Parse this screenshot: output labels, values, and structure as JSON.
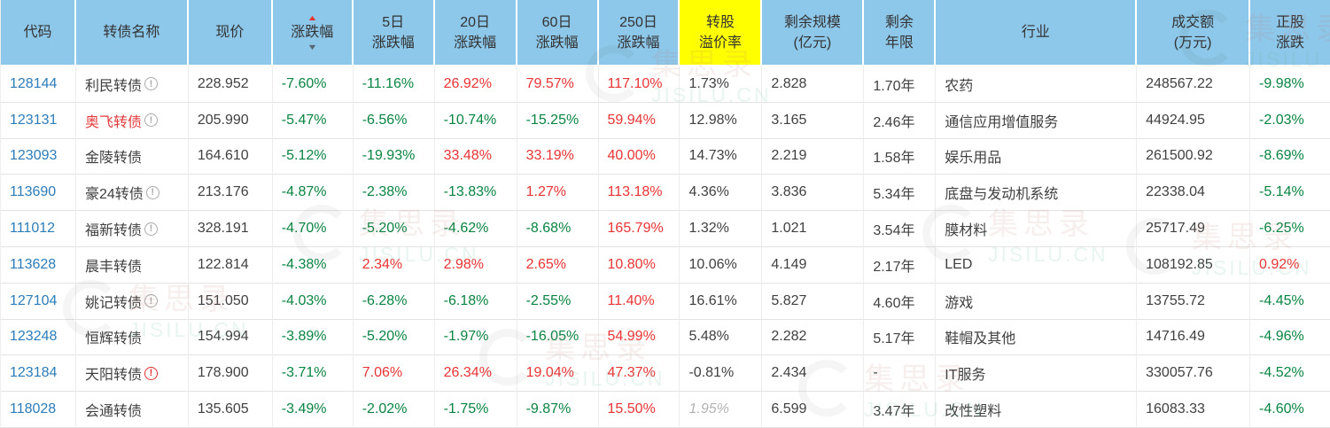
{
  "watermark": {
    "cn": "集思录",
    "en": "JISILU.CN"
  },
  "sort": {
    "column": "chg",
    "direction": "asc"
  },
  "colors": {
    "header_bg": "#8dc7e9",
    "highlight_bg": "#ffff00",
    "up_red": "#e83434",
    "down_green": "#0a8442",
    "code_blue": "#2b7cb9"
  },
  "table": {
    "columns": [
      {
        "key": "code",
        "label": [
          "代码"
        ]
      },
      {
        "key": "name",
        "label": [
          "转债名称"
        ]
      },
      {
        "key": "price",
        "label": [
          "现价"
        ]
      },
      {
        "key": "chg",
        "label": [
          "涨跌幅"
        ],
        "sort": true
      },
      {
        "key": "chg5",
        "label": [
          "5日",
          "涨跌幅"
        ]
      },
      {
        "key": "chg20",
        "label": [
          "20日",
          "涨跌幅"
        ]
      },
      {
        "key": "chg60",
        "label": [
          "60日",
          "涨跌幅"
        ]
      },
      {
        "key": "chg250",
        "label": [
          "250日",
          "涨跌幅"
        ]
      },
      {
        "key": "premium",
        "label": [
          "转股",
          "溢价率"
        ],
        "highlight": true
      },
      {
        "key": "size",
        "label": [
          "剩余规模",
          "(亿元)"
        ]
      },
      {
        "key": "years",
        "label": [
          "剩余",
          "年限"
        ]
      },
      {
        "key": "industry",
        "label": [
          "行业"
        ]
      },
      {
        "key": "turnover",
        "label": [
          "成交额",
          "(万元)"
        ]
      },
      {
        "key": "stock_chg",
        "label": [
          "正股",
          "涨跌"
        ]
      }
    ],
    "rows": [
      {
        "code": "128144",
        "name": "利民转债",
        "icon": "gray",
        "price": "228.952",
        "chg": {
          "v": "-7.60%",
          "c": "g"
        },
        "chg5": {
          "v": "-11.16%",
          "c": "g"
        },
        "chg20": {
          "v": "26.92%",
          "c": "r"
        },
        "chg60": {
          "v": "79.57%",
          "c": "r"
        },
        "chg250": {
          "v": "117.10%",
          "c": "r"
        },
        "premium": {
          "v": "1.73%",
          "c": "k"
        },
        "size": "2.828",
        "years": "1.70年",
        "industry": "农药",
        "turnover": "248567.22",
        "stock_chg": {
          "v": "-9.98%",
          "c": "g"
        }
      },
      {
        "code": "123131",
        "name": "奥飞转债",
        "name_red": true,
        "icon": "gray",
        "price": "205.990",
        "chg": {
          "v": "-5.47%",
          "c": "g"
        },
        "chg5": {
          "v": "-6.56%",
          "c": "g"
        },
        "chg20": {
          "v": "-10.74%",
          "c": "g"
        },
        "chg60": {
          "v": "-15.25%",
          "c": "g"
        },
        "chg250": {
          "v": "59.94%",
          "c": "r"
        },
        "premium": {
          "v": "12.98%",
          "c": "k"
        },
        "size": "3.165",
        "years": "2.46年",
        "industry": "通信应用增值服务",
        "turnover": "44924.95",
        "stock_chg": {
          "v": "-2.03%",
          "c": "g"
        }
      },
      {
        "code": "123093",
        "name": "金陵转债",
        "price": "164.610",
        "chg": {
          "v": "-5.12%",
          "c": "g"
        },
        "chg5": {
          "v": "-19.93%",
          "c": "g"
        },
        "chg20": {
          "v": "33.48%",
          "c": "r"
        },
        "chg60": {
          "v": "33.19%",
          "c": "r"
        },
        "chg250": {
          "v": "40.00%",
          "c": "r"
        },
        "premium": {
          "v": "14.73%",
          "c": "k"
        },
        "size": "2.219",
        "years": "1.58年",
        "industry": "娱乐用品",
        "turnover": "261500.92",
        "stock_chg": {
          "v": "-8.69%",
          "c": "g"
        }
      },
      {
        "code": "113690",
        "name": "豪24转债",
        "icon": "gray",
        "price": "213.176",
        "chg": {
          "v": "-4.87%",
          "c": "g"
        },
        "chg5": {
          "v": "-2.38%",
          "c": "g"
        },
        "chg20": {
          "v": "-13.83%",
          "c": "g"
        },
        "chg60": {
          "v": "1.27%",
          "c": "r"
        },
        "chg250": {
          "v": "113.18%",
          "c": "r"
        },
        "premium": {
          "v": "4.36%",
          "c": "k"
        },
        "size": "3.836",
        "years": "5.34年",
        "industry": "底盘与发动机系统",
        "turnover": "22338.04",
        "stock_chg": {
          "v": "-5.14%",
          "c": "g"
        }
      },
      {
        "code": "111012",
        "name": "福新转债",
        "icon": "gray",
        "price": "328.191",
        "chg": {
          "v": "-4.70%",
          "c": "g"
        },
        "chg5": {
          "v": "-5.20%",
          "c": "g"
        },
        "chg20": {
          "v": "-4.62%",
          "c": "g"
        },
        "chg60": {
          "v": "-8.68%",
          "c": "g"
        },
        "chg250": {
          "v": "165.79%",
          "c": "r"
        },
        "premium": {
          "v": "1.32%",
          "c": "k"
        },
        "size": "1.021",
        "years": "3.54年",
        "industry": "膜材料",
        "turnover": "25717.49",
        "stock_chg": {
          "v": "-6.25%",
          "c": "g"
        }
      },
      {
        "code": "113628",
        "name": "晨丰转债",
        "price": "122.814",
        "chg": {
          "v": "-4.38%",
          "c": "g"
        },
        "chg5": {
          "v": "2.34%",
          "c": "r"
        },
        "chg20": {
          "v": "2.98%",
          "c": "r"
        },
        "chg60": {
          "v": "2.65%",
          "c": "r"
        },
        "chg250": {
          "v": "10.80%",
          "c": "r"
        },
        "premium": {
          "v": "10.06%",
          "c": "k"
        },
        "size": "4.149",
        "years": "2.17年",
        "industry": "LED",
        "turnover": "108192.85",
        "stock_chg": {
          "v": "0.92%",
          "c": "r"
        }
      },
      {
        "code": "127104",
        "name": "姚记转债",
        "icon": "gray",
        "price": "151.050",
        "chg": {
          "v": "-4.03%",
          "c": "g"
        },
        "chg5": {
          "v": "-6.28%",
          "c": "g"
        },
        "chg20": {
          "v": "-6.18%",
          "c": "g"
        },
        "chg60": {
          "v": "-2.55%",
          "c": "g"
        },
        "chg250": {
          "v": "11.40%",
          "c": "r"
        },
        "premium": {
          "v": "16.61%",
          "c": "k"
        },
        "size": "5.827",
        "years": "4.60年",
        "industry": "游戏",
        "turnover": "13755.72",
        "stock_chg": {
          "v": "-4.45%",
          "c": "g"
        }
      },
      {
        "code": "123248",
        "name": "恒辉转债",
        "price": "154.994",
        "chg": {
          "v": "-3.89%",
          "c": "g"
        },
        "chg5": {
          "v": "-5.20%",
          "c": "g"
        },
        "chg20": {
          "v": "-1.97%",
          "c": "g"
        },
        "chg60": {
          "v": "-16.05%",
          "c": "g"
        },
        "chg250": {
          "v": "54.99%",
          "c": "r"
        },
        "premium": {
          "v": "5.48%",
          "c": "k"
        },
        "size": "2.282",
        "years": "5.17年",
        "industry": "鞋帽及其他",
        "turnover": "14716.49",
        "stock_chg": {
          "v": "-4.96%",
          "c": "g"
        }
      },
      {
        "code": "123184",
        "name": "天阳转债",
        "icon": "red",
        "price": "178.900",
        "chg": {
          "v": "-3.71%",
          "c": "g"
        },
        "chg5": {
          "v": "7.06%",
          "c": "r"
        },
        "chg20": {
          "v": "26.34%",
          "c": "r"
        },
        "chg60": {
          "v": "19.04%",
          "c": "r"
        },
        "chg250": {
          "v": "47.37%",
          "c": "r"
        },
        "premium": {
          "v": "-0.81%",
          "c": "k"
        },
        "size": "2.434",
        "years": "-",
        "industry": "IT服务",
        "turnover": "330057.76",
        "stock_chg": {
          "v": "-4.52%",
          "c": "g"
        }
      },
      {
        "code": "118028",
        "name": "会通转债",
        "price": "135.605",
        "chg": {
          "v": "-3.49%",
          "c": "g"
        },
        "chg5": {
          "v": "-2.02%",
          "c": "g"
        },
        "chg20": {
          "v": "-1.75%",
          "c": "g"
        },
        "chg60": {
          "v": "-9.87%",
          "c": "g"
        },
        "chg250": {
          "v": "15.50%",
          "c": "r"
        },
        "premium": {
          "v": "1.95%",
          "c": "m"
        },
        "size": "6.599",
        "years": "3.47年",
        "industry": "改性塑料",
        "turnover": "16083.33",
        "stock_chg": {
          "v": "-4.60%",
          "c": "g"
        }
      }
    ]
  }
}
